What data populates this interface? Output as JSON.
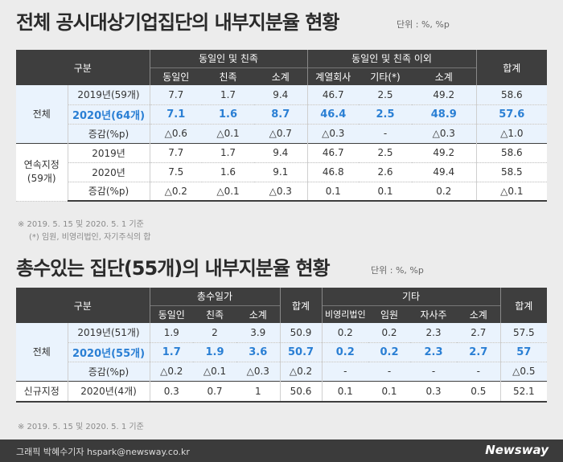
{
  "section1": {
    "title": "전체 공시대상기업집단의 내부지분율 현황",
    "unit": "단위 : %, %p",
    "header": {
      "gubun": "구분",
      "group_a": "동일인 및 친족",
      "group_b": "동일인 및 친족 이외",
      "total": "합계",
      "cols": [
        "동일인",
        "친족",
        "소계",
        "계열회사",
        "기타(*)",
        "소계"
      ]
    },
    "groups": [
      {
        "label": "전체",
        "rows": [
          {
            "label": "2019년(59개)",
            "values": [
              "7.7",
              "1.7",
              "9.4",
              "46.7",
              "2.5",
              "49.2",
              "58.6"
            ]
          },
          {
            "label": "2020년(64개)",
            "values": [
              "7.1",
              "1.6",
              "8.7",
              "46.4",
              "2.5",
              "48.9",
              "57.6"
            ]
          },
          {
            "label": "증감(%p)",
            "values": [
              "△0.6",
              "△0.1",
              "△0.7",
              "△0.3",
              "-",
              "△0.3",
              "△1.0"
            ]
          }
        ]
      },
      {
        "label_line1": "연속지정",
        "label_line2": "(59개)",
        "rows": [
          {
            "label": "2019년",
            "values": [
              "7.7",
              "1.7",
              "9.4",
              "46.7",
              "2.5",
              "49.2",
              "58.6"
            ]
          },
          {
            "label": "2020년",
            "values": [
              "7.5",
              "1.6",
              "9.1",
              "46.8",
              "2.6",
              "49.4",
              "58.5"
            ]
          },
          {
            "label": "증감(%p)",
            "values": [
              "△0.2",
              "△0.1",
              "△0.3",
              "0.1",
              "0.1",
              "0.2",
              "△0.1"
            ]
          }
        ]
      }
    ],
    "note1": "※  2019. 5. 15 및 2020. 5. 1 기준",
    "note2": "(*) 임원, 비영리법인, 자기주식의 합"
  },
  "section2": {
    "title": "총수있는 집단(55개)의 내부지분율 현황",
    "unit": "단위 : %, %p",
    "header": {
      "gubun": "구분",
      "group_a": "총수일가",
      "sum": "합계",
      "group_b": "기타",
      "total": "합계",
      "cols": [
        "동일인",
        "친족",
        "소계",
        "비영리법인",
        "임원",
        "자사주",
        "소계"
      ]
    },
    "group_all": {
      "label": "전체",
      "rows": [
        {
          "label": "2019년(51개)",
          "values": [
            "1.9",
            "2",
            "3.9",
            "50.9",
            "0.2",
            "0.2",
            "2.3",
            "2.7",
            "57.5"
          ]
        },
        {
          "label": "2020년(55개)",
          "values": [
            "1.7",
            "1.9",
            "3.6",
            "50.7",
            "0.2",
            "0.2",
            "2.3",
            "2.7",
            "57"
          ]
        },
        {
          "label": "증감(%p)",
          "values": [
            "△0.2",
            "△0.1",
            "△0.3",
            "△0.2",
            "-",
            "-",
            "-",
            "-",
            "△0.5"
          ]
        }
      ]
    },
    "group_new": {
      "label": "신규지정",
      "row": {
        "label": "2020년(4개)",
        "values": [
          "0.3",
          "0.7",
          "1",
          "50.6",
          "0.1",
          "0.1",
          "0.3",
          "0.5",
          "52.1"
        ]
      }
    },
    "note": "※  2019. 5. 15 및 2020. 5. 1 기준"
  },
  "footer": {
    "credit": "그래픽 박혜수기자 hspark@newsway.co.kr",
    "logo": "Newsway"
  }
}
